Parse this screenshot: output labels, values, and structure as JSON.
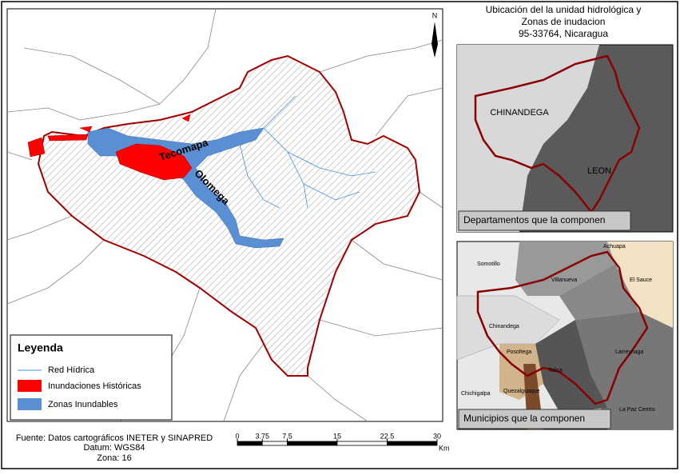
{
  "title": {
    "lines": [
      "Ubicación del la unidad hidrológica y",
      "Zonas de inudacion",
      "95-33764, Nicaragua"
    ]
  },
  "north_arrow": "N",
  "main_map": {
    "labels": [
      "Tecomapa",
      "Olomega"
    ]
  },
  "legend": {
    "title": "Leyenda",
    "items": [
      "Red Hídrica",
      "Inundaciones Históricas",
      "Zonas Inundables"
    ]
  },
  "inset_departments": {
    "caption": "Departamentos que la componen",
    "labels": [
      "CHINANDEGA",
      "LEON"
    ]
  },
  "inset_municipalities": {
    "caption": "Municipios que la componen",
    "labels": [
      "Somotillo",
      "Achuapa",
      "Villanueva",
      "El Sauce",
      "Chinandega",
      "Larreynaga",
      "Posoltega",
      "Telica",
      "Chichigalpa",
      "Quezalguaque",
      "La Paz Centro"
    ]
  },
  "source": {
    "lines": [
      "Fuente: Datos cartográficos INETER y SINAPRED",
      "Datum: WGS84",
      "Zona: 16"
    ]
  },
  "scale_bar": {
    "ticks": [
      0,
      3.75,
      7.5,
      15,
      22.5,
      30
    ],
    "unit": "Km"
  }
}
